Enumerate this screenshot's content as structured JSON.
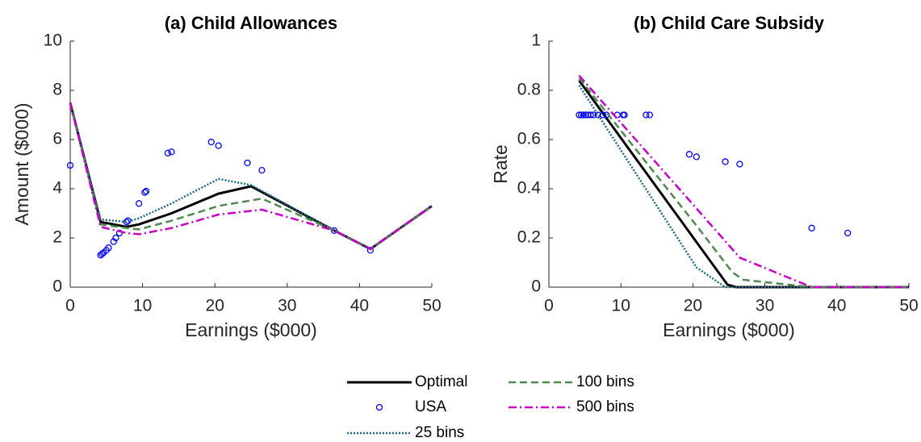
{
  "chart_data": [
    {
      "type": "line",
      "title": "(a) Child Allowances",
      "x_label": "Earnings ($000)",
      "y_label": "Amount ($000)",
      "xlim": [
        0,
        50
      ],
      "xticks": [
        0,
        10,
        20,
        30,
        40,
        50
      ],
      "ylim": [
        0,
        10
      ],
      "yticks": [
        0,
        2,
        4,
        6,
        8,
        10
      ],
      "series": [
        {
          "name": "Optimal",
          "color": "#000000",
          "line_style": "solid",
          "x": [
            0,
            4.2,
            7.8,
            9.5,
            14,
            20.5,
            25,
            36.5,
            41.5,
            50
          ],
          "values": [
            7.5,
            2.65,
            2.45,
            2.55,
            3.0,
            3.8,
            4.1,
            2.3,
            1.55,
            3.3
          ]
        },
        {
          "name": "USA",
          "color": "#0000ff",
          "line_style": "marker",
          "x": [
            0,
            4.2,
            4.4,
            4.6,
            5,
            5.3,
            6,
            6.3,
            6.8,
            7.8,
            8,
            9.5,
            10.3,
            10.5,
            13.5,
            14,
            19.5,
            20.5,
            24.5,
            26.5,
            36.5,
            41.5
          ],
          "values": [
            4.95,
            1.3,
            1.35,
            1.4,
            1.5,
            1.6,
            1.85,
            2.0,
            2.2,
            2.65,
            2.7,
            3.4,
            3.85,
            3.9,
            5.45,
            5.5,
            5.9,
            5.75,
            5.05,
            4.75,
            2.3,
            1.5
          ]
        },
        {
          "name": "25 bins",
          "color": "#1a6b8a",
          "line_style": "dotted",
          "x": [
            0,
            4.2,
            7.8,
            9.5,
            14,
            20.5,
            25,
            36.5,
            41.5,
            50
          ],
          "values": [
            7.5,
            2.75,
            2.65,
            2.8,
            3.4,
            4.4,
            4.15,
            2.3,
            1.55,
            3.3
          ]
        },
        {
          "name": "100 bins",
          "color": "#4f8a4f",
          "line_style": "dashed",
          "x": [
            0,
            4.2,
            7.8,
            9.5,
            14,
            20.5,
            26.5,
            36.5,
            41.5,
            50
          ],
          "values": [
            7.5,
            2.55,
            2.4,
            2.35,
            2.7,
            3.3,
            3.6,
            2.3,
            1.55,
            3.3
          ]
        },
        {
          "name": "500 bins",
          "color": "#c800c8",
          "line_style": "dashdot",
          "x": [
            0,
            4.2,
            7.8,
            9.5,
            14,
            20.5,
            26.5,
            36.5,
            41.5,
            50
          ],
          "values": [
            7.5,
            2.45,
            2.2,
            2.15,
            2.4,
            2.95,
            3.15,
            2.3,
            1.55,
            3.3
          ]
        }
      ]
    },
    {
      "type": "line",
      "title": "(b) Child Care Subsidy",
      "x_label": "Earnings ($000)",
      "y_label": "Rate",
      "xlim": [
        0,
        50
      ],
      "xticks": [
        0,
        10,
        20,
        30,
        40,
        50
      ],
      "ylim": [
        0,
        1
      ],
      "yticks": [
        0,
        0.2,
        0.4,
        0.6,
        0.8,
        1
      ],
      "series": [
        {
          "name": "Optimal",
          "color": "#000000",
          "line_style": "solid",
          "x": [
            4.2,
            24.8,
            26,
            50
          ],
          "values": [
            0.84,
            0.01,
            0,
            0
          ]
        },
        {
          "name": "USA",
          "color": "#0000ff",
          "line_style": "marker",
          "x": [
            4.2,
            4.5,
            4.8,
            5.1,
            5.4,
            5.8,
            6.2,
            6.8,
            7.5,
            8,
            9.5,
            10.3,
            10.5,
            13.5,
            14,
            19.5,
            20.5,
            24.5,
            26.5,
            36.5,
            41.5
          ],
          "values": [
            0.7,
            0.7,
            0.7,
            0.7,
            0.7,
            0.7,
            0.7,
            0.7,
            0.7,
            0.7,
            0.7,
            0.7,
            0.7,
            0.7,
            0.7,
            0.54,
            0.53,
            0.51,
            0.5,
            0.24,
            0.22
          ]
        },
        {
          "name": "25 bins",
          "color": "#1a6b8a",
          "line_style": "dotted",
          "x": [
            4.2,
            20.5,
            24.5,
            50
          ],
          "values": [
            0.82,
            0.08,
            0,
            0
          ]
        },
        {
          "name": "100 bins",
          "color": "#4f8a4f",
          "line_style": "dashed",
          "x": [
            4.2,
            20.5,
            25.5,
            27,
            36.5,
            50
          ],
          "values": [
            0.85,
            0.25,
            0.06,
            0.03,
            0,
            0
          ]
        },
        {
          "name": "500 bins",
          "color": "#c800c8",
          "line_style": "dashdot",
          "x": [
            4.2,
            20.5,
            26.5,
            36.5,
            50
          ],
          "values": [
            0.86,
            0.32,
            0.12,
            0,
            0
          ]
        }
      ]
    }
  ]
}
